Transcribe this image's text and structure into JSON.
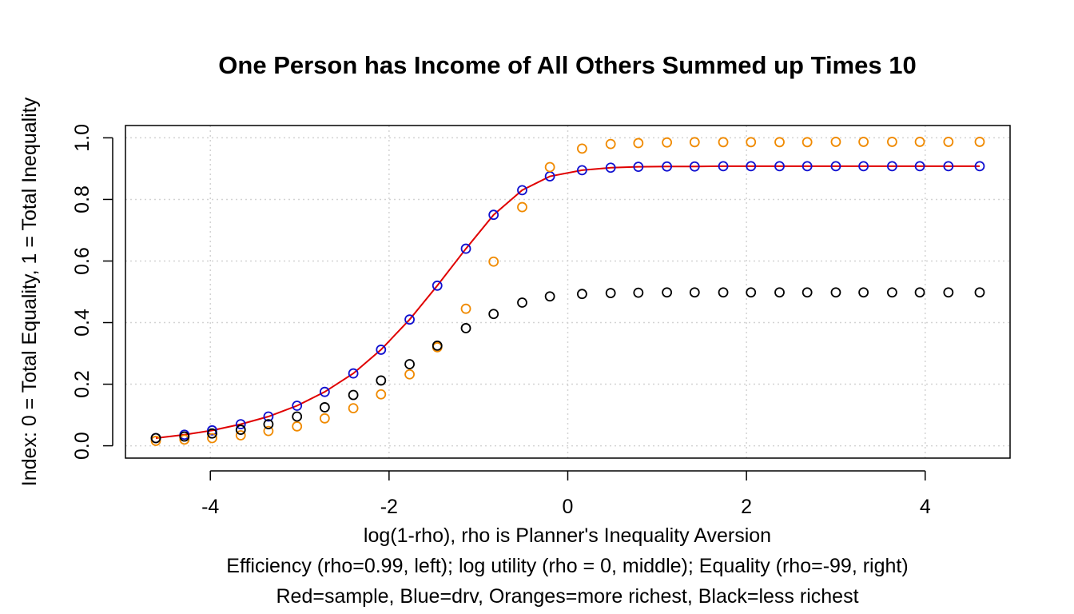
{
  "chart_data": {
    "type": "scatter",
    "title": "One Person has Income of All Others Summed up Times 10",
    "xlabel": "log(1-rho), rho is Planner's Inequality Aversion",
    "xlabel_line2": "Efficiency (rho=0.99, left); log utility (rho = 0, middle); Equality (rho=-99, right)",
    "xlabel_line3": "Red=sample, Blue=drv, Oranges=more richest, Black=less richest",
    "ylabel": "Index: 0 = Total Equality, 1 = Total Inequality",
    "xlim": [
      -4.95,
      4.95
    ],
    "ylim": [
      -0.04,
      1.04
    ],
    "xticks": [
      "-4",
      "-2",
      "0",
      "2",
      "4"
    ],
    "xtick_values": [
      -4,
      -2,
      0,
      2,
      4
    ],
    "yticks": [
      "0.0",
      "0.2",
      "0.4",
      "0.6",
      "0.8",
      "1.0"
    ],
    "ytick_values": [
      0,
      0.2,
      0.4,
      0.6,
      0.8,
      1.0
    ],
    "grid": true,
    "x": [
      -4.61,
      -4.29,
      -3.98,
      -3.66,
      -3.35,
      -3.03,
      -2.72,
      -2.4,
      -2.09,
      -1.77,
      -1.46,
      -1.14,
      -0.83,
      -0.51,
      -0.2,
      0.16,
      0.48,
      0.79,
      1.11,
      1.42,
      1.74,
      2.05,
      2.37,
      2.68,
      3.0,
      3.31,
      3.63,
      3.94,
      4.26,
      4.61
    ],
    "series": [
      {
        "name": "Red=sample",
        "style": "line",
        "color": "#e00000",
        "values": [
          0.025,
          0.036,
          0.05,
          0.07,
          0.095,
          0.13,
          0.175,
          0.235,
          0.312,
          0.41,
          0.52,
          0.64,
          0.75,
          0.83,
          0.875,
          0.895,
          0.903,
          0.906,
          0.907,
          0.907,
          0.908,
          0.908,
          0.908,
          0.908,
          0.908,
          0.908,
          0.908,
          0.908,
          0.908,
          0.908
        ]
      },
      {
        "name": "Blue=drv",
        "style": "points",
        "color": "#1010d0",
        "values": [
          0.025,
          0.036,
          0.05,
          0.07,
          0.095,
          0.13,
          0.175,
          0.235,
          0.312,
          0.41,
          0.52,
          0.64,
          0.75,
          0.83,
          0.875,
          0.895,
          0.903,
          0.906,
          0.907,
          0.907,
          0.908,
          0.908,
          0.908,
          0.908,
          0.908,
          0.908,
          0.908,
          0.908,
          0.908,
          0.908
        ]
      },
      {
        "name": "Oranges=more richest",
        "style": "points",
        "color": "#f08a00",
        "values": [
          0.016,
          0.02,
          0.025,
          0.034,
          0.048,
          0.063,
          0.089,
          0.122,
          0.167,
          0.232,
          0.32,
          0.445,
          0.598,
          0.775,
          0.905,
          0.965,
          0.98,
          0.983,
          0.985,
          0.986,
          0.986,
          0.986,
          0.986,
          0.986,
          0.987,
          0.987,
          0.987,
          0.987,
          0.987,
          0.987
        ]
      },
      {
        "name": "Black=less richest",
        "style": "points",
        "color": "#000000",
        "values": [
          0.025,
          0.03,
          0.04,
          0.052,
          0.07,
          0.095,
          0.125,
          0.165,
          0.212,
          0.265,
          0.325,
          0.382,
          0.428,
          0.465,
          0.485,
          0.493,
          0.496,
          0.497,
          0.498,
          0.498,
          0.498,
          0.498,
          0.498,
          0.498,
          0.498,
          0.498,
          0.498,
          0.498,
          0.498,
          0.498
        ]
      }
    ]
  }
}
